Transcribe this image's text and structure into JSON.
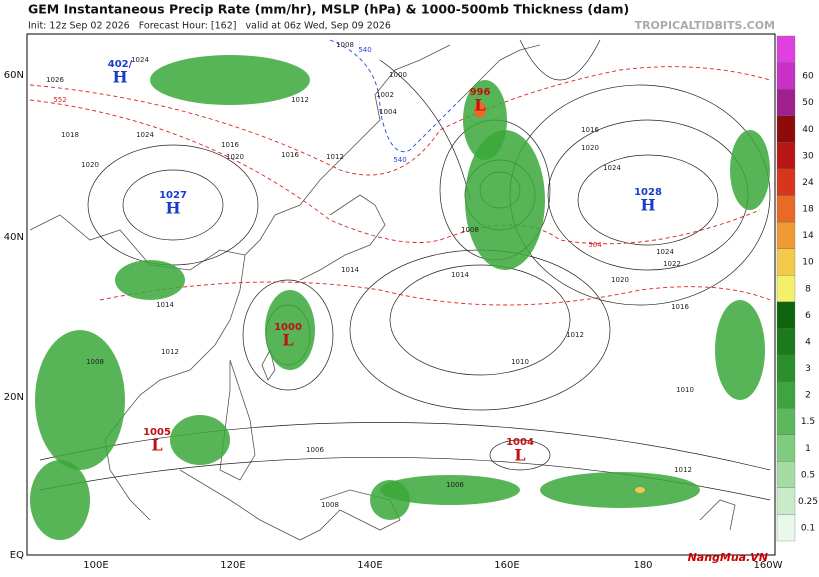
{
  "header": {
    "title": "GEM Instantaneous Precip Rate (mm/hr), MSLP (hPa) & 1000-500mb Thickness (dam)",
    "subtitle": "Init: 12z Sep 02 2026   Forecast Hour: [162]   valid at 06z Wed, Sep 09 2026",
    "source": "TROPICALTIDBITS.COM"
  },
  "map": {
    "lat_labels": [
      "60N",
      "40N",
      "20N",
      "EQ"
    ],
    "lon_labels": [
      "100E",
      "120E",
      "140E",
      "160E",
      "180",
      "160W"
    ],
    "centers": [
      {
        "symbol": "H",
        "value": "402/"
      },
      {
        "symbol": "H",
        "value": "1027"
      },
      {
        "symbol": "H",
        "value": "1028"
      },
      {
        "symbol": "L",
        "value": "996"
      },
      {
        "symbol": "L",
        "value": "1000"
      },
      {
        "symbol": "L",
        "value": "1005"
      },
      {
        "symbol": "L",
        "value": "1004"
      }
    ],
    "contour_labels": [
      "1024",
      "1026",
      "1018",
      "1024",
      "1020",
      "1016",
      "1012",
      "1008",
      "1004",
      "1000",
      "1002",
      "1008",
      "1012",
      "1016",
      "1020",
      "1024",
      "1022",
      "1020",
      "1016",
      "1014",
      "1014",
      "1012",
      "1010",
      "1010",
      "1006",
      "1006",
      "1008",
      "1008",
      "1012",
      "1016",
      "1020",
      "1012",
      "1024",
      "1014",
      "552",
      "564",
      "540",
      "540"
    ]
  },
  "colorbar": {
    "labels": [
      "0.1",
      "0.25",
      "0.5",
      "1",
      "1.5",
      "2",
      "3",
      "4",
      "6",
      "8",
      "10",
      "14",
      "18",
      "24",
      "30",
      "40",
      "50",
      "60"
    ],
    "colors": [
      "#e9f7e9",
      "#c8ecc8",
      "#a4dca4",
      "#7fcb7f",
      "#5bb95b",
      "#3ea43e",
      "#2a8f2a",
      "#1b7a1b",
      "#0e650e",
      "#f4f06a",
      "#f3c94a",
      "#ef9a33",
      "#e86a26",
      "#d8361c",
      "#b81515",
      "#8e0b0b",
      "#a0208f",
      "#c830c8",
      "#e040e0"
    ]
  },
  "watermark": "NangMua.VN"
}
